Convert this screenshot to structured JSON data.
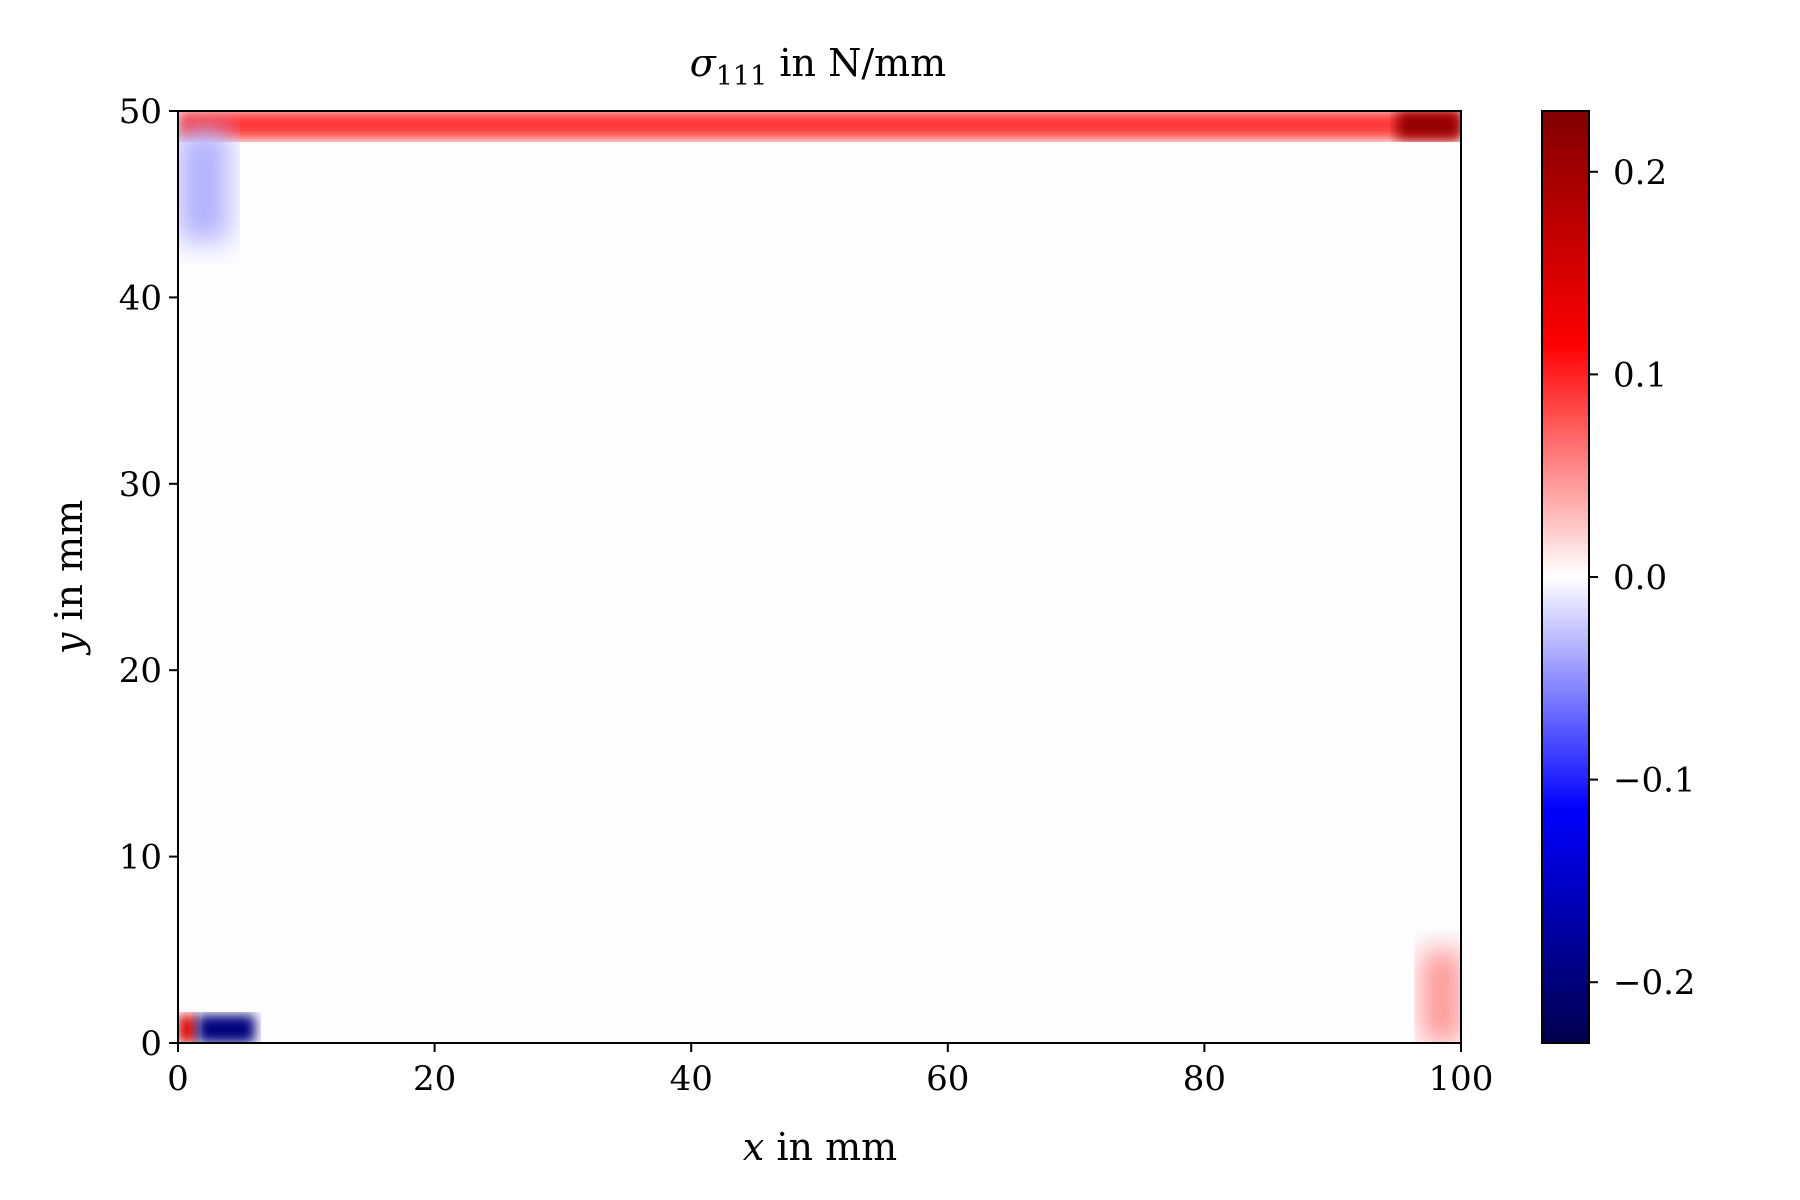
{
  "chart_data": {
    "type": "heatmap",
    "title": {
      "symbol": "σ",
      "subscript": "111",
      "suffix": " in N/mm"
    },
    "xlabel": {
      "var": "x",
      "rest": " in mm"
    },
    "ylabel": {
      "var": "y",
      "rest": " in mm"
    },
    "xlim": [
      0,
      100
    ],
    "ylim": [
      0,
      50
    ],
    "x_ticks": [
      0,
      20,
      40,
      60,
      80,
      100
    ],
    "y_ticks": [
      0,
      10,
      20,
      30,
      40,
      50
    ],
    "colorbar": {
      "colormap": "seismic",
      "vmin": -0.23,
      "vmax": 0.23,
      "ticks": [
        0.2,
        0.1,
        0.0,
        -0.1,
        -0.2
      ],
      "tick_labels": [
        "0.2",
        "0.1",
        "0.0",
        "−0.1",
        "−0.2"
      ]
    },
    "field_features": [
      {
        "region": "top edge band",
        "x_range": [
          0,
          100
        ],
        "y_range": [
          48.5,
          50
        ],
        "value": 0.09
      },
      {
        "region": "top-right corner",
        "x_range": [
          95,
          100
        ],
        "y_range": [
          48.5,
          50
        ],
        "value": 0.21
      },
      {
        "region": "upper-left edge",
        "x_range": [
          0,
          4
        ],
        "y_range": [
          43,
          49
        ],
        "value": -0.035
      },
      {
        "region": "lower-left corner",
        "x_range": [
          0,
          1.5
        ],
        "y_range": [
          0,
          1.5
        ],
        "value": 0.15
      },
      {
        "region": "bottom-left hot spot",
        "x_range": [
          1.5,
          6
        ],
        "y_range": [
          0,
          1.5
        ],
        "value": -0.2
      },
      {
        "region": "bottom-right corner",
        "x_range": [
          97,
          100
        ],
        "y_range": [
          0,
          5
        ],
        "value": 0.05
      },
      {
        "region": "interior",
        "x_range": [
          5,
          95
        ],
        "y_range": [
          2,
          48
        ],
        "value": 0.0
      }
    ],
    "grid": false,
    "legend": "colorbar-right"
  }
}
